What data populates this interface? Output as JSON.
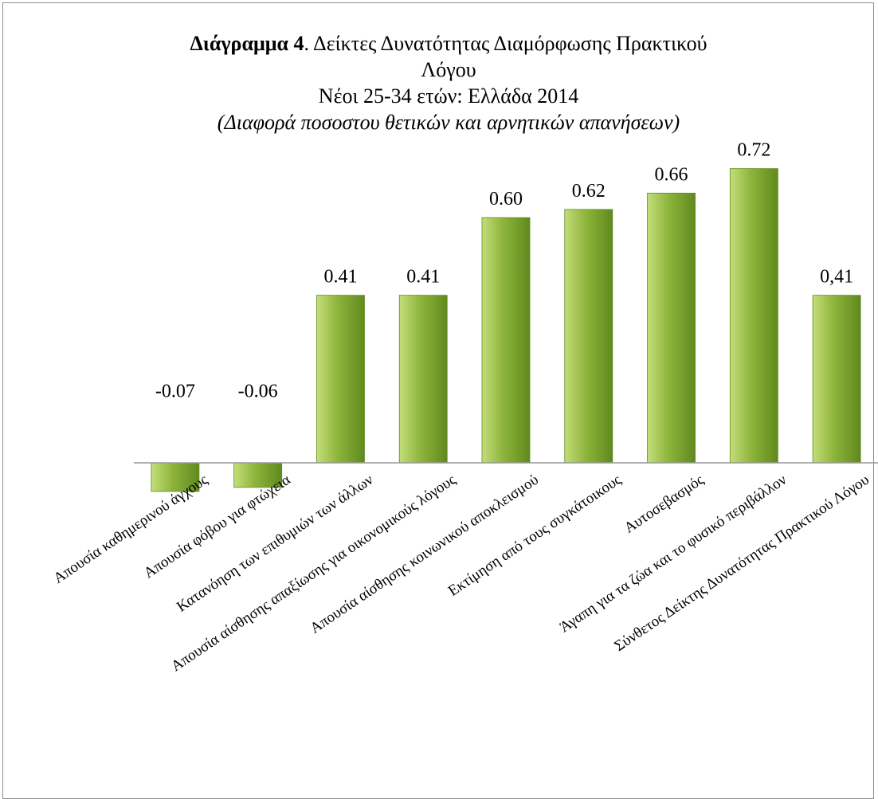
{
  "chart_data": {
    "type": "bar",
    "title_bold": "Διάγραμμα 4",
    "title_rest_line1": ". Δείκτες Δυνατότητας Διαμόρφωσης Πρακτικού",
    "title_line2": "Λόγου",
    "subtitle": "Νέοι 25-34 ετών: Ελλάδα 2014",
    "note": "(Διαφορά ποσοστου θετικών και αρνητικών απανήσεων)",
    "categories": [
      "Απουσία καθημερινού άγχους",
      "Απουσία φόβου για φτώχεια",
      "Κατανόηση των επιθυμιών των άλλων",
      "Απουσία αίσθησης απαξίωσης για οικονομικούς λόγους",
      "Απουσία αίσθησης κοινωνικού αποκλεισμού",
      "Εκτίμηση από τους συγκάτοικους",
      "Αυτοσεβασμός",
      "Άγαπη για τα ζώα και το φυσικό περιβάλλον",
      "Σύνθετος Δείκτης Δυνατότητας Πρακτικού Λόγου"
    ],
    "values": [
      -0.07,
      -0.06,
      0.41,
      0.41,
      0.6,
      0.62,
      0.66,
      0.72,
      0.41
    ],
    "data_labels": [
      "-0.07",
      "-0.06",
      "0.41",
      "0.41",
      "0.60",
      "0.62",
      "0.66",
      "0.72",
      "0,41"
    ],
    "bar_color": "#8db33a",
    "bar_highlight": "#c4de7a",
    "bar_shadow": "#5f8a1e",
    "axis_color": "#999999",
    "ylim": [
      -0.07,
      0.72
    ],
    "grid": false,
    "legend": "none"
  }
}
